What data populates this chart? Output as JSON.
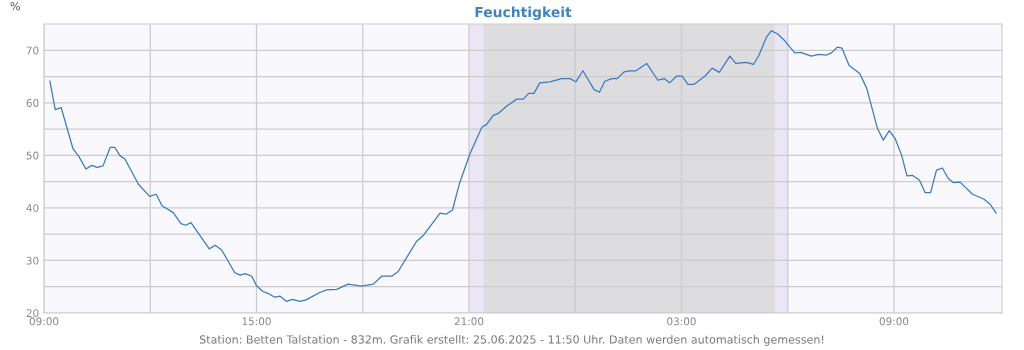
{
  "chart_data": {
    "type": "line",
    "title": "Feuchtigkeit",
    "ylabel": "%",
    "x": [
      "2025-06-24T09:10",
      "2025-06-24T09:19",
      "2025-06-24T09:29",
      "2025-06-24T09:49",
      "2025-06-24T09:59",
      "2025-06-24T10:11",
      "2025-06-24T10:21",
      "2025-06-24T10:30",
      "2025-06-24T10:40",
      "2025-06-24T10:52",
      "2025-06-24T11:00",
      "2025-06-24T11:09",
      "2025-06-24T11:17",
      "2025-06-24T11:40",
      "2025-06-24T11:59",
      "2025-06-24T12:10",
      "2025-06-24T12:20",
      "2025-06-24T12:39",
      "2025-06-24T12:52",
      "2025-06-24T13:00",
      "2025-06-24T13:09",
      "2025-06-24T13:40",
      "2025-06-24T13:50",
      "2025-06-24T14:01",
      "2025-06-24T14:23",
      "2025-06-24T14:32",
      "2025-06-24T14:41",
      "2025-06-24T14:52",
      "2025-06-24T15:00",
      "2025-06-24T15:11",
      "2025-06-24T15:20",
      "2025-06-24T15:31",
      "2025-06-24T15:40",
      "2025-06-24T15:51",
      "2025-06-24T16:01",
      "2025-06-24T16:13",
      "2025-06-24T16:24",
      "2025-06-24T16:47",
      "2025-06-24T16:59",
      "2025-06-24T17:16",
      "2025-06-24T17:35",
      "2025-06-24T17:58",
      "2025-06-24T18:18",
      "2025-06-24T18:32",
      "2025-06-24T18:49",
      "2025-06-24T19:00",
      "2025-06-24T19:31",
      "2025-06-24T19:43",
      "2025-06-24T20:11",
      "2025-06-24T20:21",
      "2025-06-24T20:32",
      "2025-06-24T20:44",
      "2025-06-24T21:02",
      "2025-06-24T21:22",
      "2025-06-24T21:30",
      "2025-06-24T21:41",
      "2025-06-24T21:50",
      "2025-06-24T22:04",
      "2025-06-24T22:21",
      "2025-06-24T22:32",
      "2025-06-24T22:41",
      "2025-06-24T22:50",
      "2025-06-24T23:00",
      "2025-06-24T23:17",
      "2025-06-24T23:37",
      "2025-06-24T23:51",
      "2025-06-25T00:01",
      "2025-06-25T00:13",
      "2025-06-25T00:22",
      "2025-06-25T00:32",
      "2025-06-25T00:41",
      "2025-06-25T00:50",
      "2025-06-25T01:02",
      "2025-06-25T01:11",
      "2025-06-25T01:23",
      "2025-06-25T01:32",
      "2025-06-25T01:43",
      "2025-06-25T02:01",
      "2025-06-25T02:20",
      "2025-06-25T02:31",
      "2025-06-25T02:40",
      "2025-06-25T02:52",
      "2025-06-25T03:01",
      "2025-06-25T03:11",
      "2025-06-25T03:21",
      "2025-06-25T03:40",
      "2025-06-25T03:52",
      "2025-06-25T04:04",
      "2025-06-25T04:22",
      "2025-06-25T04:32",
      "2025-06-25T04:50",
      "2025-06-25T05:02",
      "2025-06-25T05:11",
      "2025-06-25T05:24",
      "2025-06-25T05:32",
      "2025-06-25T05:42",
      "2025-06-25T05:55",
      "2025-06-25T06:12",
      "2025-06-25T06:22",
      "2025-06-25T06:40",
      "2025-06-25T06:52",
      "2025-06-25T07:06",
      "2025-06-25T07:14",
      "2025-06-25T07:24",
      "2025-06-25T07:32",
      "2025-06-25T07:44",
      "2025-06-25T08:02",
      "2025-06-25T08:14",
      "2025-06-25T08:32",
      "2025-06-25T08:42",
      "2025-06-25T08:52",
      "2025-06-25T09:02",
      "2025-06-25T09:13",
      "2025-06-25T09:22",
      "2025-06-25T09:31",
      "2025-06-25T09:43",
      "2025-06-25T09:53",
      "2025-06-25T10:02",
      "2025-06-25T10:12",
      "2025-06-25T10:22",
      "2025-06-25T10:32",
      "2025-06-25T10:41",
      "2025-06-25T10:52",
      "2025-06-25T11:13",
      "2025-06-25T11:32",
      "2025-06-25T11:43",
      "2025-06-25T11:53"
    ],
    "series": [
      {
        "color": "#3a7bbf",
        "values": [
          64.1,
          58.7,
          59.1,
          51.3,
          49.8,
          47.4,
          48.1,
          47.7,
          48.0,
          51.5,
          51.5,
          49.9,
          49.3,
          44.5,
          42.2,
          42.6,
          40.4,
          39.1,
          37.0,
          36.7,
          37.2,
          32.2,
          32.9,
          32.0,
          27.7,
          27.2,
          27.5,
          27.0,
          25.2,
          24.1,
          23.7,
          23.0,
          23.2,
          22.2,
          22.6,
          22.2,
          22.5,
          23.9,
          24.4,
          24.5,
          25.5,
          25.1,
          25.5,
          27.0,
          27.0,
          27.9,
          33.6,
          34.8,
          39.0,
          38.8,
          39.6,
          44.7,
          50.4,
          55.4,
          55.9,
          57.6,
          58.0,
          59.4,
          60.7,
          60.7,
          61.8,
          61.8,
          63.8,
          64.0,
          64.6,
          64.6,
          64.0,
          66.1,
          64.4,
          62.5,
          62.0,
          64.1,
          64.6,
          64.6,
          65.9,
          66.1,
          66.1,
          67.5,
          64.3,
          64.6,
          63.8,
          65.1,
          65.1,
          63.5,
          63.5,
          65.1,
          66.6,
          65.8,
          68.9,
          67.5,
          67.7,
          67.3,
          69.0,
          72.5,
          73.7,
          73.2,
          71.8,
          69.5,
          69.6,
          68.9,
          69.2,
          69.1,
          69.5,
          70.6,
          70.4,
          67.1,
          65.6,
          62.7,
          55.1,
          52.9,
          54.7,
          53.2,
          50.0,
          46.1,
          46.2,
          45.3,
          42.9,
          42.9,
          47.2,
          47.6,
          45.6,
          44.8,
          44.9,
          42.6,
          41.7,
          40.7,
          39.0
        ]
      }
    ],
    "xlim": [
      "2025-06-24T09:00",
      "2025-06-25T12:03"
    ],
    "xticks": [
      {
        "value": "2025-06-24T09:00",
        "label": "09:00"
      },
      {
        "value": "2025-06-24T12:00",
        "label": null
      },
      {
        "value": "2025-06-24T15:00",
        "label": "15:00"
      },
      {
        "value": "2025-06-24T18:00",
        "label": null
      },
      {
        "value": "2025-06-24T21:00",
        "label": "21:00"
      },
      {
        "value": "2025-06-25T00:00",
        "label": null
      },
      {
        "value": "2025-06-25T03:00",
        "label": "03:00"
      },
      {
        "value": "2025-06-25T06:00",
        "label": null
      },
      {
        "value": "2025-06-25T09:00",
        "label": "09:00"
      }
    ],
    "ylim": [
      20,
      75
    ],
    "yticks": [
      20,
      {
        "value": 25,
        "label": null
      },
      30,
      {
        "value": 35,
        "label": null
      },
      40,
      {
        "value": 45,
        "label": null
      },
      50,
      {
        "value": 55,
        "label": null
      },
      60,
      {
        "value": 65,
        "label": null
      },
      70
    ],
    "bands": [
      {
        "axis": "x",
        "from": "2025-06-24T21:00",
        "to": "2025-06-25T06:00",
        "color": "#ebe6f6"
      },
      {
        "axis": "x",
        "from": "2025-06-24T21:25",
        "to": "2025-06-25T05:38",
        "color": "#dddde0"
      }
    ],
    "grid": true,
    "marker": "none",
    "line_style": "solid",
    "annotations": [
      "Station: Betten Talstation - 832m. Grafik erstellt: 25.06.2025 - 11:50 Uhr. Daten werden automatisch gemessen!"
    ]
  }
}
